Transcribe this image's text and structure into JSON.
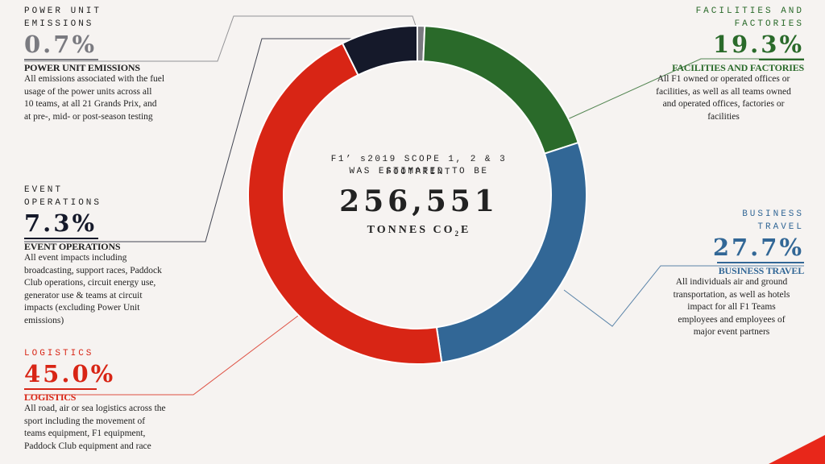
{
  "colors": {
    "power_unit": "#7a7a80",
    "facilities": "#2a6a2a",
    "business": "#326796",
    "logistics": "#d82515",
    "event": "#15192a",
    "bg": "#f6f3f1"
  },
  "center": {
    "line1": "F1’ s2019 SCOPE 1, 2 & 3 FOOTPRINT",
    "line2": "WAS ESTIMATED TO BE",
    "total": "256,551",
    "unit_prefix": "TONNES CO",
    "unit_sub": "2",
    "unit_suffix": "E"
  },
  "labels": {
    "power_unit": {
      "title_line1": "POWER UNIT",
      "title_line2": "EMISSIONS",
      "pct": "0.7%",
      "heading": "POWER UNIT EMISSIONS",
      "desc": [
        "All emissions associated with the fuel",
        "usage of the power units across all",
        "10 teams, at all 21 Grands Prix, and",
        "at  pre-, mid-  or post-season testing"
      ]
    },
    "event": {
      "title_line1": "EVENT",
      "title_line2": "OPERATIONS",
      "pct": "7.3%",
      "heading": "EVENT  OPERATIONS",
      "desc": [
        "All event impacts including",
        "broadcasting,  support races, Paddock",
        "Club operations, circuit energy use,",
        "generator use & teams at circuit",
        "impacts (excluding Power Unit",
        "emissions)"
      ]
    },
    "logistics": {
      "title_line1": "LOGISTICS",
      "pct": "45.0%",
      "heading": "LOGISTICS",
      "desc": [
        "All road, air or sea logistics across the",
        "sport including the movement of",
        "teams equipment, F1 equipment,",
        "Paddock Club equipment and race"
      ]
    },
    "facilities": {
      "title_line1": "FACILITIES AND",
      "title_line2": "FACTORIES",
      "pct": "19.3%",
      "heading": "FACILITIES  AND FACTORIES",
      "desc": [
        "All F1 owned or operated offices or",
        "facilities, as well as all teams owned",
        "and operated offices,  factories or",
        "facilities"
      ]
    },
    "business": {
      "title_line1": "BUSINESS",
      "title_line2": "TRAVEL",
      "pct": "27.7%",
      "heading": "BUSINESS TRAVEL",
      "desc": [
        "All individuals air and ground",
        "transportation, as well as hotels",
        "impact for all F1 Teams",
        "employees and  employees of",
        "major event partners"
      ]
    }
  },
  "chart_data": {
    "type": "pie",
    "total": 256551,
    "unit": "TONNES CO2E",
    "series": [
      {
        "name": "POWER UNIT EMISSIONS",
        "value": 0.7,
        "color_key": "power_unit"
      },
      {
        "name": "FACILITIES AND FACTORIES",
        "value": 19.3,
        "color_key": "facilities"
      },
      {
        "name": "BUSINESS TRAVEL",
        "value": 27.7,
        "color_key": "business"
      },
      {
        "name": "LOGISTICS",
        "value": 45.0,
        "color_key": "logistics"
      },
      {
        "name": "EVENT OPERATIONS",
        "value": 7.3,
        "color_key": "event"
      }
    ]
  }
}
